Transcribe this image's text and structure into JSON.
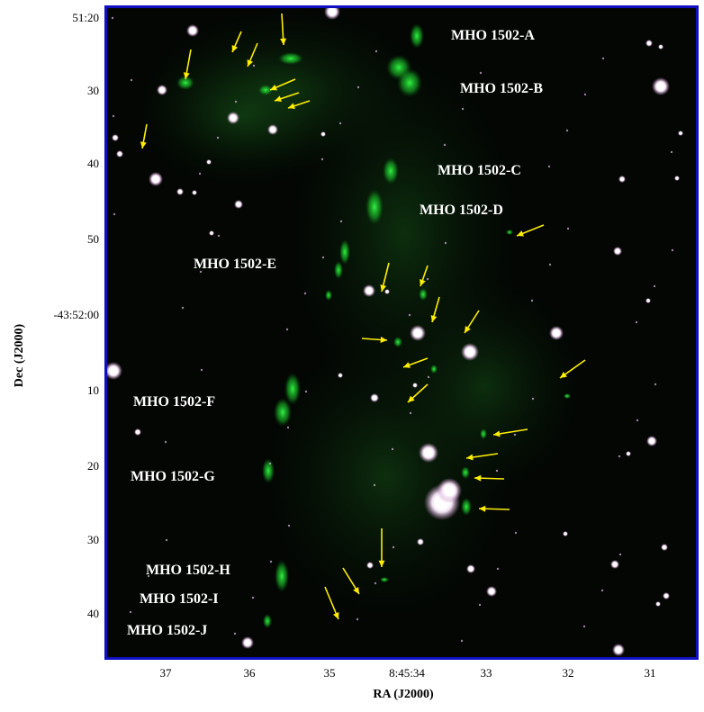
{
  "labels": {
    "A": "MHO 1502-A",
    "B": "MHO 1502-B",
    "C": "MHO 1502-C",
    "D": "MHO 1502-D",
    "E": "MHO 1502-E",
    "F": "MHO 1502-F",
    "G": "MHO 1502-G",
    "H": "MHO 1502-H",
    "I": "MHO 1502-I",
    "J": "MHO 1502-J"
  },
  "axes": {
    "xlabel": "RA (J2000)",
    "ylabel": "Dec (J2000)",
    "xticks": [
      "37",
      "36",
      "35",
      "8:45:34",
      "33",
      "32",
      "31"
    ],
    "yticks": [
      "51:20",
      "30",
      "40",
      "50",
      "-43:52:00",
      "10",
      "20",
      "30",
      "40"
    ]
  },
  "colors": {
    "frame": "#1010c0",
    "arrows": "#ffee00",
    "emission": "#22dd33",
    "stars": "#f4e8f4"
  }
}
